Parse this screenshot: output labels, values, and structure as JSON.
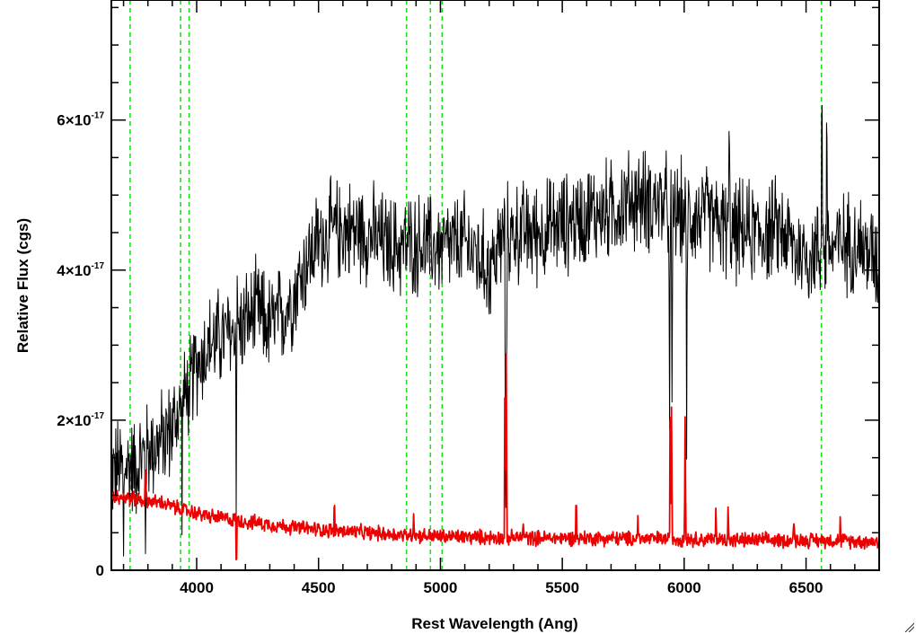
{
  "chart_data": {
    "type": "line",
    "title": "",
    "xlabel": "Rest Wavelength (Ang)",
    "ylabel": "Relative Flux (cgs)",
    "xlim": [
      3650,
      6800
    ],
    "ylim": [
      0,
      7.6e-17
    ],
    "grid": false,
    "legend": "none",
    "x_ticks": [
      {
        "value": 4000,
        "label": "4000"
      },
      {
        "value": 4500,
        "label": "4500"
      },
      {
        "value": 5000,
        "label": "5000"
      },
      {
        "value": 5500,
        "label": "5500"
      },
      {
        "value": 6000,
        "label": "6000"
      },
      {
        "value": 6500,
        "label": "6500"
      }
    ],
    "y_ticks": [
      {
        "value": 0,
        "mantissa": "0",
        "exponent": ""
      },
      {
        "value": 2e-17,
        "mantissa": "2×10",
        "exponent": "-17"
      },
      {
        "value": 4e-17,
        "mantissa": "4×10",
        "exponent": "-17"
      },
      {
        "value": 6e-17,
        "mantissa": "6×10",
        "exponent": "-17"
      }
    ],
    "reference_lines": [
      3727,
      3934,
      3969,
      4861,
      4959,
      5007,
      6563
    ],
    "series": [
      {
        "color": "#000000",
        "noise": 5.5e-18,
        "points": [
          [
            3650,
            1.3e-17
          ],
          [
            3700,
            1.4e-17
          ],
          [
            3750,
            1.4e-17
          ],
          [
            3800,
            1.6e-17
          ],
          [
            3850,
            1.7e-17
          ],
          [
            3900,
            1.9e-17
          ],
          [
            3950,
            2.3e-17
          ],
          [
            4000,
            2.75e-17
          ],
          [
            4050,
            3e-17
          ],
          [
            4100,
            3.1e-17
          ],
          [
            4150,
            3.15e-17
          ],
          [
            4200,
            3.3e-17
          ],
          [
            4250,
            3.45e-17
          ],
          [
            4300,
            3.25e-17
          ],
          [
            4350,
            3.4e-17
          ],
          [
            4400,
            3.7e-17
          ],
          [
            4450,
            4.1e-17
          ],
          [
            4500,
            4.4e-17
          ],
          [
            4550,
            4.5e-17
          ],
          [
            4600,
            4.55e-17
          ],
          [
            4700,
            4.5e-17
          ],
          [
            4800,
            4.3e-17
          ],
          [
            4900,
            4.35e-17
          ],
          [
            5000,
            4.3e-17
          ],
          [
            5100,
            4.35e-17
          ],
          [
            5150,
            4.2e-17
          ],
          [
            5200,
            4e-17
          ],
          [
            5250,
            4.4e-17
          ],
          [
            5300,
            4.5e-17
          ],
          [
            5400,
            4.5e-17
          ],
          [
            5500,
            4.6e-17
          ],
          [
            5600,
            4.75e-17
          ],
          [
            5700,
            4.8e-17
          ],
          [
            5800,
            4.95e-17
          ],
          [
            5900,
            4.9e-17
          ],
          [
            6000,
            4.75e-17
          ],
          [
            6100,
            4.7e-17
          ],
          [
            6200,
            4.5e-17
          ],
          [
            6300,
            4.5e-17
          ],
          [
            6400,
            4.55e-17
          ],
          [
            6450,
            4.3e-17
          ],
          [
            6500,
            4.2e-17
          ],
          [
            6600,
            4.3e-17
          ],
          [
            6700,
            4.4e-17
          ],
          [
            6800,
            4.1e-17
          ]
        ],
        "features": [
          [
            3700,
            -1.4e-17
          ],
          [
            3790,
            -1.2e-17
          ],
          [
            3940,
            -1e-17
          ],
          [
            3970,
            -1.1e-17
          ],
          [
            4163,
            -2.8e-17
          ],
          [
            4165,
            1.5e-17
          ],
          [
            5267,
            -4e-17
          ],
          [
            5270,
            -2.5e-17
          ],
          [
            5940,
            -3.5e-17
          ],
          [
            5950,
            -3.2e-17
          ],
          [
            6010,
            -3.3e-17
          ],
          [
            6185,
            1.7e-17
          ],
          [
            6565,
            3.5e-17
          ],
          [
            6585,
            2.5e-17
          ]
        ]
      },
      {
        "color": "#ee0000",
        "noise": 8e-19,
        "points": [
          [
            3650,
            1e-17
          ],
          [
            3750,
            9.5e-18
          ],
          [
            3850,
            9e-18
          ],
          [
            3950,
            8e-18
          ],
          [
            4050,
            7.2e-18
          ],
          [
            4200,
            6.5e-18
          ],
          [
            4400,
            5.7e-18
          ],
          [
            4600,
            5.2e-18
          ],
          [
            4800,
            4.8e-18
          ],
          [
            5000,
            4.5e-18
          ],
          [
            5200,
            4.4e-18
          ],
          [
            5400,
            4.3e-18
          ],
          [
            5600,
            4.3e-18
          ],
          [
            5800,
            4.2e-18
          ],
          [
            6000,
            4.2e-18
          ],
          [
            6200,
            4e-18
          ],
          [
            6400,
            4e-18
          ],
          [
            6600,
            4e-18
          ],
          [
            6800,
            3.8e-18
          ]
        ],
        "features": [
          [
            3790,
            4e-18
          ],
          [
            4163,
            -7e-18
          ],
          [
            4565,
            4e-18
          ],
          [
            4890,
            3.5e-18
          ],
          [
            5265,
            2.7e-17
          ],
          [
            5270,
            2.4e-17
          ],
          [
            5340,
            2.5e-18
          ],
          [
            5557,
            6e-18
          ],
          [
            5810,
            3e-18
          ],
          [
            5943,
            2.4e-17
          ],
          [
            5948,
            1.7e-17
          ],
          [
            6004,
            1.6e-17
          ],
          [
            6130,
            4e-18
          ],
          [
            6180,
            4.5e-18
          ],
          [
            6450,
            3e-18
          ],
          [
            6640,
            2.5e-18
          ]
        ]
      }
    ]
  }
}
